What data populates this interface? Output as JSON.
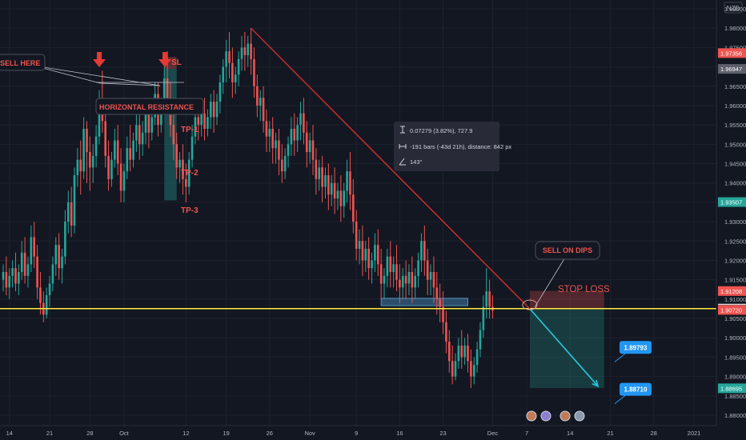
{
  "chart_data": {
    "type": "candlestick",
    "currency": "NZD",
    "y_axis": {
      "min": 1.88,
      "max": 1.985,
      "ticks": [
        "1.98500",
        "1.98000",
        "1.97500",
        "1.97000",
        "1.96500",
        "1.96000",
        "1.95500",
        "1.95000",
        "1.94500",
        "1.94000",
        "1.93500",
        "1.93000",
        "1.92500",
        "1.92000",
        "1.91500",
        "1.91000",
        "1.90500",
        "1.90000",
        "1.89500",
        "1.89000",
        "1.88500",
        "1.88000"
      ],
      "tick_values": [
        1.985,
        1.98,
        1.975,
        1.97,
        1.965,
        1.96,
        1.955,
        1.95,
        1.945,
        1.94,
        1.935,
        1.93,
        1.925,
        1.92,
        1.915,
        1.91,
        1.905,
        1.9,
        1.895,
        1.89,
        1.885,
        1.88
      ]
    },
    "x_axis": {
      "ticks": [
        {
          "label": "14",
          "i": 2
        },
        {
          "label": "21",
          "i": 15
        },
        {
          "label": "28",
          "i": 28
        },
        {
          "label": "Oct",
          "i": 39
        },
        {
          "label": "12",
          "i": 59
        },
        {
          "label": "19",
          "i": 72
        },
        {
          "label": "26",
          "i": 86
        },
        {
          "label": "Nov",
          "i": 99
        },
        {
          "label": "9",
          "i": 114
        },
        {
          "label": "16",
          "i": 128
        },
        {
          "label": "23",
          "i": 142
        },
        {
          "label": "Dec",
          "i": 158
        },
        {
          "label": "7",
          "i": 169
        },
        {
          "label": "14",
          "i": 183
        },
        {
          "label": "21",
          "i": 196
        },
        {
          "label": "28",
          "i": 210
        },
        {
          "label": "2021",
          "i": 223
        }
      ]
    },
    "price_badges": [
      {
        "text": "1.97356",
        "value": 1.97356,
        "color": "#ef5350"
      },
      {
        "text": "1.96947",
        "value": 1.96947,
        "color": "#5d606b"
      },
      {
        "text": "1.93507",
        "value": 1.93507,
        "color": "#26a69a"
      },
      {
        "text": "1.91208",
        "value": 1.91208,
        "color": "#ef5350"
      },
      {
        "text": "1.90754",
        "value": 1.90754,
        "color": "#f5f5f5"
      },
      {
        "text": "1.90732",
        "value": 1.90732,
        "color": "#5d606b"
      },
      {
        "text": "1.90720",
        "value": 1.9072,
        "color": "#ef5350"
      },
      {
        "text": "1.88695",
        "value": 1.88695,
        "color": "#26a69a"
      }
    ],
    "horizontal_line": {
      "value": 1.90754,
      "color": "#ffeb3b"
    },
    "trendline": {
      "from": {
        "i": 80,
        "v": 1.98
      },
      "to": {
        "i": 170,
        "v": 1.9075
      },
      "color": "#d32f2f"
    },
    "projection_arrow": {
      "from": {
        "i": 170,
        "v": 1.9075
      },
      "to": {
        "i": 192,
        "v": 1.8875
      },
      "color": "#26c6da"
    },
    "short_position": {
      "i_start": 170,
      "i_end": 194,
      "entry": 1.9075,
      "stop": 1.9121,
      "target": 1.887
    },
    "left_zone": {
      "i_start": 52,
      "i_end": 56,
      "top": 1.9725,
      "mid": 1.9695,
      "bottom": 1.9355
    },
    "support_box": {
      "i_start": 122,
      "i_end": 150,
      "top": 1.9102,
      "bottom": 1.9083
    },
    "measure_box": {
      "text_price": "0.07279 (3.82%), 727.9",
      "text_bars": "-191 bars (-43d 21h), distance: 842 px",
      "text_angle": "143°"
    },
    "annotations": {
      "sell_here": "SELL HERE",
      "horizontal_resistance": "HORIZONTAL RESISTANCE",
      "sl_left": "SL",
      "tp1": "TP-1",
      "tp2": "TP-2",
      "tp3": "TP-3",
      "sell_on_dips": "SELL ON DIPS",
      "stop_loss": "STOP LOSS"
    },
    "target_badges": [
      {
        "text": "1.89793",
        "value": 1.89793,
        "i": 196
      },
      {
        "text": "1.88710",
        "value": 1.8871,
        "i": 196
      }
    ],
    "events_count": 4,
    "candles": [
      {
        "o": 1.915,
        "h": 1.919,
        "c": 1.917,
        "l": 1.912
      },
      {
        "o": 1.917,
        "h": 1.921,
        "c": 1.913,
        "l": 1.911
      },
      {
        "o": 1.913,
        "h": 1.918,
        "c": 1.916,
        "l": 1.91
      },
      {
        "o": 1.916,
        "h": 1.92,
        "c": 1.918,
        "l": 1.913
      },
      {
        "o": 1.918,
        "h": 1.922,
        "c": 1.914,
        "l": 1.912
      },
      {
        "o": 1.914,
        "h": 1.919,
        "c": 1.917,
        "l": 1.911
      },
      {
        "o": 1.917,
        "h": 1.925,
        "c": 1.922,
        "l": 1.915
      },
      {
        "o": 1.922,
        "h": 1.926,
        "c": 1.916,
        "l": 1.914
      },
      {
        "o": 1.916,
        "h": 1.921,
        "c": 1.919,
        "l": 1.913
      },
      {
        "o": 1.919,
        "h": 1.929,
        "c": 1.926,
        "l": 1.917
      },
      {
        "o": 1.926,
        "h": 1.93,
        "c": 1.921,
        "l": 1.918
      },
      {
        "o": 1.921,
        "h": 1.924,
        "c": 1.913,
        "l": 1.91
      },
      {
        "o": 1.913,
        "h": 1.917,
        "c": 1.909,
        "l": 1.906
      },
      {
        "o": 1.909,
        "h": 1.912,
        "c": 1.906,
        "l": 1.904
      },
      {
        "o": 1.906,
        "h": 1.913,
        "c": 1.911,
        "l": 1.905
      },
      {
        "o": 1.911,
        "h": 1.916,
        "c": 1.914,
        "l": 1.908
      },
      {
        "o": 1.914,
        "h": 1.921,
        "c": 1.919,
        "l": 1.912
      },
      {
        "o": 1.919,
        "h": 1.926,
        "c": 1.924,
        "l": 1.916
      },
      {
        "o": 1.924,
        "h": 1.927,
        "c": 1.918,
        "l": 1.915
      },
      {
        "o": 1.918,
        "h": 1.923,
        "c": 1.921,
        "l": 1.914
      },
      {
        "o": 1.921,
        "h": 1.933,
        "c": 1.93,
        "l": 1.919
      },
      {
        "o": 1.93,
        "h": 1.938,
        "c": 1.935,
        "l": 1.927
      },
      {
        "o": 1.935,
        "h": 1.939,
        "c": 1.929,
        "l": 1.926
      },
      {
        "o": 1.929,
        "h": 1.944,
        "c": 1.942,
        "l": 1.927
      },
      {
        "o": 1.942,
        "h": 1.949,
        "c": 1.946,
        "l": 1.939
      },
      {
        "o": 1.946,
        "h": 1.951,
        "c": 1.943,
        "l": 1.937
      },
      {
        "o": 1.943,
        "h": 1.957,
        "c": 1.954,
        "l": 1.941
      },
      {
        "o": 1.954,
        "h": 1.956,
        "c": 1.948,
        "l": 1.94
      },
      {
        "o": 1.948,
        "h": 1.952,
        "c": 1.944,
        "l": 1.938
      },
      {
        "o": 1.944,
        "h": 1.95,
        "c": 1.947,
        "l": 1.94
      },
      {
        "o": 1.947,
        "h": 1.955,
        "c": 1.952,
        "l": 1.944
      },
      {
        "o": 1.952,
        "h": 1.964,
        "c": 1.961,
        "l": 1.95
      },
      {
        "o": 1.961,
        "h": 1.969,
        "c": 1.956,
        "l": 1.953
      },
      {
        "o": 1.956,
        "h": 1.959,
        "c": 1.947,
        "l": 1.944
      },
      {
        "o": 1.947,
        "h": 1.951,
        "c": 1.941,
        "l": 1.938
      },
      {
        "o": 1.941,
        "h": 1.948,
        "c": 1.946,
        "l": 1.939
      },
      {
        "o": 1.946,
        "h": 1.954,
        "c": 1.951,
        "l": 1.944
      },
      {
        "o": 1.951,
        "h": 1.955,
        "c": 1.945,
        "l": 1.942
      },
      {
        "o": 1.945,
        "h": 1.949,
        "c": 1.938,
        "l": 1.935
      },
      {
        "o": 1.938,
        "h": 1.945,
        "c": 1.943,
        "l": 1.935
      },
      {
        "o": 1.943,
        "h": 1.952,
        "c": 1.949,
        "l": 1.941
      },
      {
        "o": 1.949,
        "h": 1.955,
        "c": 1.946,
        "l": 1.943
      },
      {
        "o": 1.946,
        "h": 1.953,
        "c": 1.951,
        "l": 1.944
      },
      {
        "o": 1.951,
        "h": 1.958,
        "c": 1.955,
        "l": 1.948
      },
      {
        "o": 1.955,
        "h": 1.958,
        "c": 1.95,
        "l": 1.946
      },
      {
        "o": 1.95,
        "h": 1.956,
        "c": 1.953,
        "l": 1.947
      },
      {
        "o": 1.953,
        "h": 1.961,
        "c": 1.958,
        "l": 1.95
      },
      {
        "o": 1.958,
        "h": 1.962,
        "c": 1.953,
        "l": 1.949
      },
      {
        "o": 1.953,
        "h": 1.959,
        "c": 1.957,
        "l": 1.951
      },
      {
        "o": 1.957,
        "h": 1.966,
        "c": 1.963,
        "l": 1.955
      },
      {
        "o": 1.963,
        "h": 1.966,
        "c": 1.955,
        "l": 1.952
      },
      {
        "o": 1.955,
        "h": 1.962,
        "c": 1.96,
        "l": 1.953
      },
      {
        "o": 1.96,
        "h": 1.97,
        "c": 1.967,
        "l": 1.958
      },
      {
        "o": 1.967,
        "h": 1.974,
        "c": 1.962,
        "l": 1.959
      },
      {
        "o": 1.962,
        "h": 1.966,
        "c": 1.955,
        "l": 1.952
      },
      {
        "o": 1.955,
        "h": 1.96,
        "c": 1.95,
        "l": 1.946
      },
      {
        "o": 1.95,
        "h": 1.953,
        "c": 1.944,
        "l": 1.941
      },
      {
        "o": 1.944,
        "h": 1.948,
        "c": 1.946,
        "l": 1.94
      },
      {
        "o": 1.946,
        "h": 1.95,
        "c": 1.941,
        "l": 1.937
      },
      {
        "o": 1.941,
        "h": 1.945,
        "c": 1.939,
        "l": 1.935
      },
      {
        "o": 1.939,
        "h": 1.948,
        "c": 1.946,
        "l": 1.937
      },
      {
        "o": 1.946,
        "h": 1.955,
        "c": 1.952,
        "l": 1.944
      },
      {
        "o": 1.952,
        "h": 1.959,
        "c": 1.957,
        "l": 1.95
      },
      {
        "o": 1.957,
        "h": 1.961,
        "c": 1.955,
        "l": 1.951
      },
      {
        "o": 1.955,
        "h": 1.96,
        "c": 1.958,
        "l": 1.952
      },
      {
        "o": 1.958,
        "h": 1.962,
        "c": 1.954,
        "l": 1.951
      },
      {
        "o": 1.954,
        "h": 1.959,
        "c": 1.957,
        "l": 1.952
      },
      {
        "o": 1.957,
        "h": 1.963,
        "c": 1.961,
        "l": 1.954
      },
      {
        "o": 1.961,
        "h": 1.964,
        "c": 1.957,
        "l": 1.953
      },
      {
        "o": 1.957,
        "h": 1.963,
        "c": 1.961,
        "l": 1.955
      },
      {
        "o": 1.961,
        "h": 1.968,
        "c": 1.966,
        "l": 1.958
      },
      {
        "o": 1.966,
        "h": 1.972,
        "c": 1.97,
        "l": 1.963
      },
      {
        "o": 1.97,
        "h": 1.977,
        "c": 1.974,
        "l": 1.966
      },
      {
        "o": 1.974,
        "h": 1.979,
        "c": 1.971,
        "l": 1.967
      },
      {
        "o": 1.971,
        "h": 1.975,
        "c": 1.966,
        "l": 1.962
      },
      {
        "o": 1.966,
        "h": 1.97,
        "c": 1.968,
        "l": 1.963
      },
      {
        "o": 1.968,
        "h": 1.974,
        "c": 1.972,
        "l": 1.965
      },
      {
        "o": 1.972,
        "h": 1.978,
        "c": 1.975,
        "l": 1.969
      },
      {
        "o": 1.975,
        "h": 1.979,
        "c": 1.973,
        "l": 1.969
      },
      {
        "o": 1.973,
        "h": 1.978,
        "c": 1.976,
        "l": 1.97
      },
      {
        "o": 1.976,
        "h": 1.98,
        "c": 1.972,
        "l": 1.968
      },
      {
        "o": 1.972,
        "h": 1.975,
        "c": 1.965,
        "l": 1.962
      },
      {
        "o": 1.965,
        "h": 1.968,
        "c": 1.96,
        "l": 1.957
      },
      {
        "o": 1.96,
        "h": 1.964,
        "c": 1.962,
        "l": 1.956
      },
      {
        "o": 1.962,
        "h": 1.965,
        "c": 1.956,
        "l": 1.953
      },
      {
        "o": 1.956,
        "h": 1.959,
        "c": 1.952,
        "l": 1.948
      },
      {
        "o": 1.952,
        "h": 1.956,
        "c": 1.954,
        "l": 1.948
      },
      {
        "o": 1.954,
        "h": 1.957,
        "c": 1.949,
        "l": 1.945
      },
      {
        "o": 1.949,
        "h": 1.953,
        "c": 1.951,
        "l": 1.945
      },
      {
        "o": 1.951,
        "h": 1.954,
        "c": 1.946,
        "l": 1.942
      },
      {
        "o": 1.946,
        "h": 1.95,
        "c": 1.943,
        "l": 1.94
      },
      {
        "o": 1.943,
        "h": 1.949,
        "c": 1.947,
        "l": 1.941
      },
      {
        "o": 1.947,
        "h": 1.952,
        "c": 1.95,
        "l": 1.944
      },
      {
        "o": 1.95,
        "h": 1.957,
        "c": 1.954,
        "l": 1.947
      },
      {
        "o": 1.954,
        "h": 1.958,
        "c": 1.951,
        "l": 1.947
      },
      {
        "o": 1.951,
        "h": 1.957,
        "c": 1.955,
        "l": 1.948
      },
      {
        "o": 1.955,
        "h": 1.961,
        "c": 1.958,
        "l": 1.951
      },
      {
        "o": 1.958,
        "h": 1.962,
        "c": 1.953,
        "l": 1.95
      },
      {
        "o": 1.953,
        "h": 1.956,
        "c": 1.948,
        "l": 1.944
      },
      {
        "o": 1.948,
        "h": 1.953,
        "c": 1.951,
        "l": 1.945
      },
      {
        "o": 1.951,
        "h": 1.955,
        "c": 1.946,
        "l": 1.942
      },
      {
        "o": 1.946,
        "h": 1.949,
        "c": 1.941,
        "l": 1.937
      },
      {
        "o": 1.941,
        "h": 1.946,
        "c": 1.944,
        "l": 1.938
      },
      {
        "o": 1.944,
        "h": 1.947,
        "c": 1.939,
        "l": 1.935
      },
      {
        "o": 1.939,
        "h": 1.944,
        "c": 1.942,
        "l": 1.936
      },
      {
        "o": 1.942,
        "h": 1.945,
        "c": 1.937,
        "l": 1.933
      },
      {
        "o": 1.937,
        "h": 1.942,
        "c": 1.94,
        "l": 1.934
      },
      {
        "o": 1.94,
        "h": 1.944,
        "c": 1.936,
        "l": 1.932
      },
      {
        "o": 1.936,
        "h": 1.94,
        "c": 1.938,
        "l": 1.933
      },
      {
        "o": 1.938,
        "h": 1.942,
        "c": 1.934,
        "l": 1.93
      },
      {
        "o": 1.934,
        "h": 1.94,
        "c": 1.938,
        "l": 1.931
      },
      {
        "o": 1.938,
        "h": 1.946,
        "c": 1.943,
        "l": 1.935
      },
      {
        "o": 1.943,
        "h": 1.948,
        "c": 1.937,
        "l": 1.933
      },
      {
        "o": 1.937,
        "h": 1.941,
        "c": 1.93,
        "l": 1.927
      },
      {
        "o": 1.93,
        "h": 1.933,
        "c": 1.923,
        "l": 1.92
      },
      {
        "o": 1.923,
        "h": 1.928,
        "c": 1.925,
        "l": 1.919
      },
      {
        "o": 1.925,
        "h": 1.929,
        "c": 1.92,
        "l": 1.916
      },
      {
        "o": 1.92,
        "h": 1.925,
        "c": 1.923,
        "l": 1.917
      },
      {
        "o": 1.923,
        "h": 1.926,
        "c": 1.918,
        "l": 1.915
      },
      {
        "o": 1.918,
        "h": 1.922,
        "c": 1.92,
        "l": 1.914
      },
      {
        "o": 1.92,
        "h": 1.927,
        "c": 1.924,
        "l": 1.917
      },
      {
        "o": 1.924,
        "h": 1.928,
        "c": 1.919,
        "l": 1.916
      },
      {
        "o": 1.919,
        "h": 1.923,
        "c": 1.914,
        "l": 1.91
      },
      {
        "o": 1.914,
        "h": 1.918,
        "c": 1.916,
        "l": 1.91
      },
      {
        "o": 1.916,
        "h": 1.923,
        "c": 1.921,
        "l": 1.913
      },
      {
        "o": 1.921,
        "h": 1.925,
        "c": 1.917,
        "l": 1.913
      },
      {
        "o": 1.917,
        "h": 1.921,
        "c": 1.919,
        "l": 1.913
      },
      {
        "o": 1.919,
        "h": 1.924,
        "c": 1.915,
        "l": 1.912
      },
      {
        "o": 1.915,
        "h": 1.919,
        "c": 1.913,
        "l": 1.909
      },
      {
        "o": 1.913,
        "h": 1.918,
        "c": 1.916,
        "l": 1.91
      },
      {
        "o": 1.916,
        "h": 1.92,
        "c": 1.914,
        "l": 1.91
      },
      {
        "o": 1.914,
        "h": 1.919,
        "c": 1.917,
        "l": 1.911
      },
      {
        "o": 1.917,
        "h": 1.921,
        "c": 1.913,
        "l": 1.909
      },
      {
        "o": 1.913,
        "h": 1.918,
        "c": 1.916,
        "l": 1.91
      },
      {
        "o": 1.916,
        "h": 1.922,
        "c": 1.92,
        "l": 1.913
      },
      {
        "o": 1.92,
        "h": 1.927,
        "c": 1.925,
        "l": 1.917
      },
      {
        "o": 1.925,
        "h": 1.929,
        "c": 1.92,
        "l": 1.916
      },
      {
        "o": 1.92,
        "h": 1.923,
        "c": 1.915,
        "l": 1.911
      },
      {
        "o": 1.915,
        "h": 1.919,
        "c": 1.917,
        "l": 1.911
      },
      {
        "o": 1.917,
        "h": 1.921,
        "c": 1.913,
        "l": 1.909
      },
      {
        "o": 1.913,
        "h": 1.917,
        "c": 1.91,
        "l": 1.906
      },
      {
        "o": 1.91,
        "h": 1.914,
        "c": 1.908,
        "l": 1.904
      },
      {
        "o": 1.908,
        "h": 1.912,
        "c": 1.904,
        "l": 1.901
      },
      {
        "o": 1.904,
        "h": 1.907,
        "c": 1.899,
        "l": 1.896
      },
      {
        "o": 1.899,
        "h": 1.902,
        "c": 1.894,
        "l": 1.891
      },
      {
        "o": 1.894,
        "h": 1.898,
        "c": 1.89,
        "l": 1.888
      },
      {
        "o": 1.89,
        "h": 1.896,
        "c": 1.894,
        "l": 1.889
      },
      {
        "o": 1.894,
        "h": 1.9,
        "c": 1.898,
        "l": 1.892
      },
      {
        "o": 1.898,
        "h": 1.902,
        "c": 1.895,
        "l": 1.892
      },
      {
        "o": 1.895,
        "h": 1.9,
        "c": 1.898,
        "l": 1.893
      },
      {
        "o": 1.898,
        "h": 1.901,
        "c": 1.894,
        "l": 1.891
      },
      {
        "o": 1.894,
        "h": 1.897,
        "c": 1.89,
        "l": 1.887
      },
      {
        "o": 1.89,
        "h": 1.895,
        "c": 1.893,
        "l": 1.888
      },
      {
        "o": 1.893,
        "h": 1.899,
        "c": 1.897,
        "l": 1.891
      },
      {
        "o": 1.897,
        "h": 1.904,
        "c": 1.902,
        "l": 1.895
      },
      {
        "o": 1.902,
        "h": 1.911,
        "c": 1.908,
        "l": 1.9
      },
      {
        "o": 1.908,
        "h": 1.918,
        "c": 1.912,
        "l": 1.905
      },
      {
        "o": 1.912,
        "h": 1.915,
        "c": 1.908,
        "l": 1.905
      },
      {
        "o": 1.908,
        "h": 1.911,
        "c": 1.907,
        "l": 1.905
      }
    ]
  }
}
